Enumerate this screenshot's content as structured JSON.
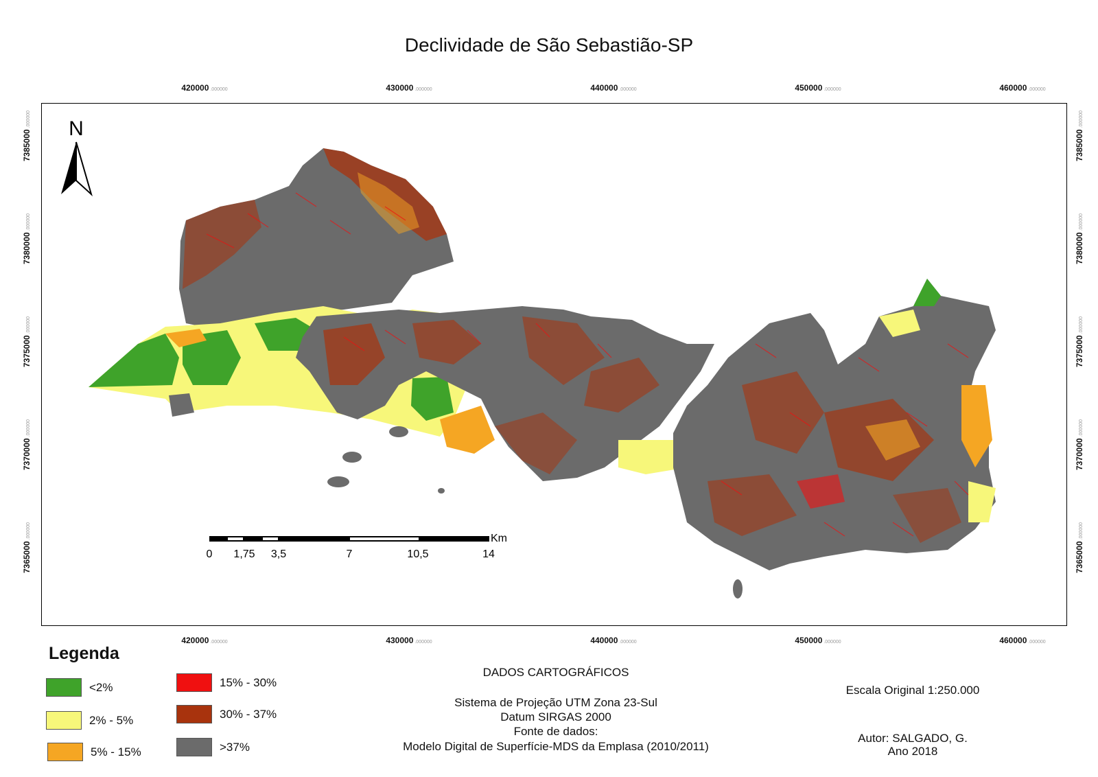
{
  "title": "Declividade de São Sebastião-SP",
  "grid": {
    "x_ticks": [
      {
        "value": "420000",
        "decimals": ".000000"
      },
      {
        "value": "430000",
        "decimals": ".000000"
      },
      {
        "value": "440000",
        "decimals": ".000000"
      },
      {
        "value": "450000",
        "decimals": ".000000"
      },
      {
        "value": "460000",
        "decimals": ".000000"
      }
    ],
    "y_ticks": [
      {
        "value": "7385000",
        "decimals": ".000000"
      },
      {
        "value": "7380000",
        "decimals": ".000000"
      },
      {
        "value": "7375000",
        "decimals": ".000000"
      },
      {
        "value": "7370000",
        "decimals": ".000000"
      },
      {
        "value": "7365000",
        "decimals": ".000000"
      }
    ]
  },
  "north_arrow": {
    "label": "N"
  },
  "scale_bar": {
    "unit": "Km",
    "labels": [
      "0",
      "1,75",
      "3,5",
      "7",
      "10,5",
      "14"
    ]
  },
  "legend": {
    "title": "Legenda",
    "items": [
      {
        "label": "<2%",
        "color": "#3fa32a"
      },
      {
        "label": "2% - 5%",
        "color": "#f7f77a"
      },
      {
        "label": "5% - 15%",
        "color": "#f5a623"
      },
      {
        "label": "15% - 30%",
        "color": "#f01010"
      },
      {
        "label": "30% - 37%",
        "color": "#a8330d"
      },
      {
        "label": ">37%",
        "color": "#6b6b6b"
      }
    ]
  },
  "cartographic": {
    "heading": "DADOS CARTOGRÁFICOS",
    "projection": "Sistema de Projeção UTM Zona 23-Sul",
    "datum": "Datum SIRGAS 2000",
    "source_label": "Fonte de dados:",
    "source": "Modelo Digital de Superfície-MDS da Emplasa (2010/2011)"
  },
  "scale_text": "Escala Original 1:250.000",
  "author": "Autor: SALGADO, G.",
  "year": "Ano 2018"
}
